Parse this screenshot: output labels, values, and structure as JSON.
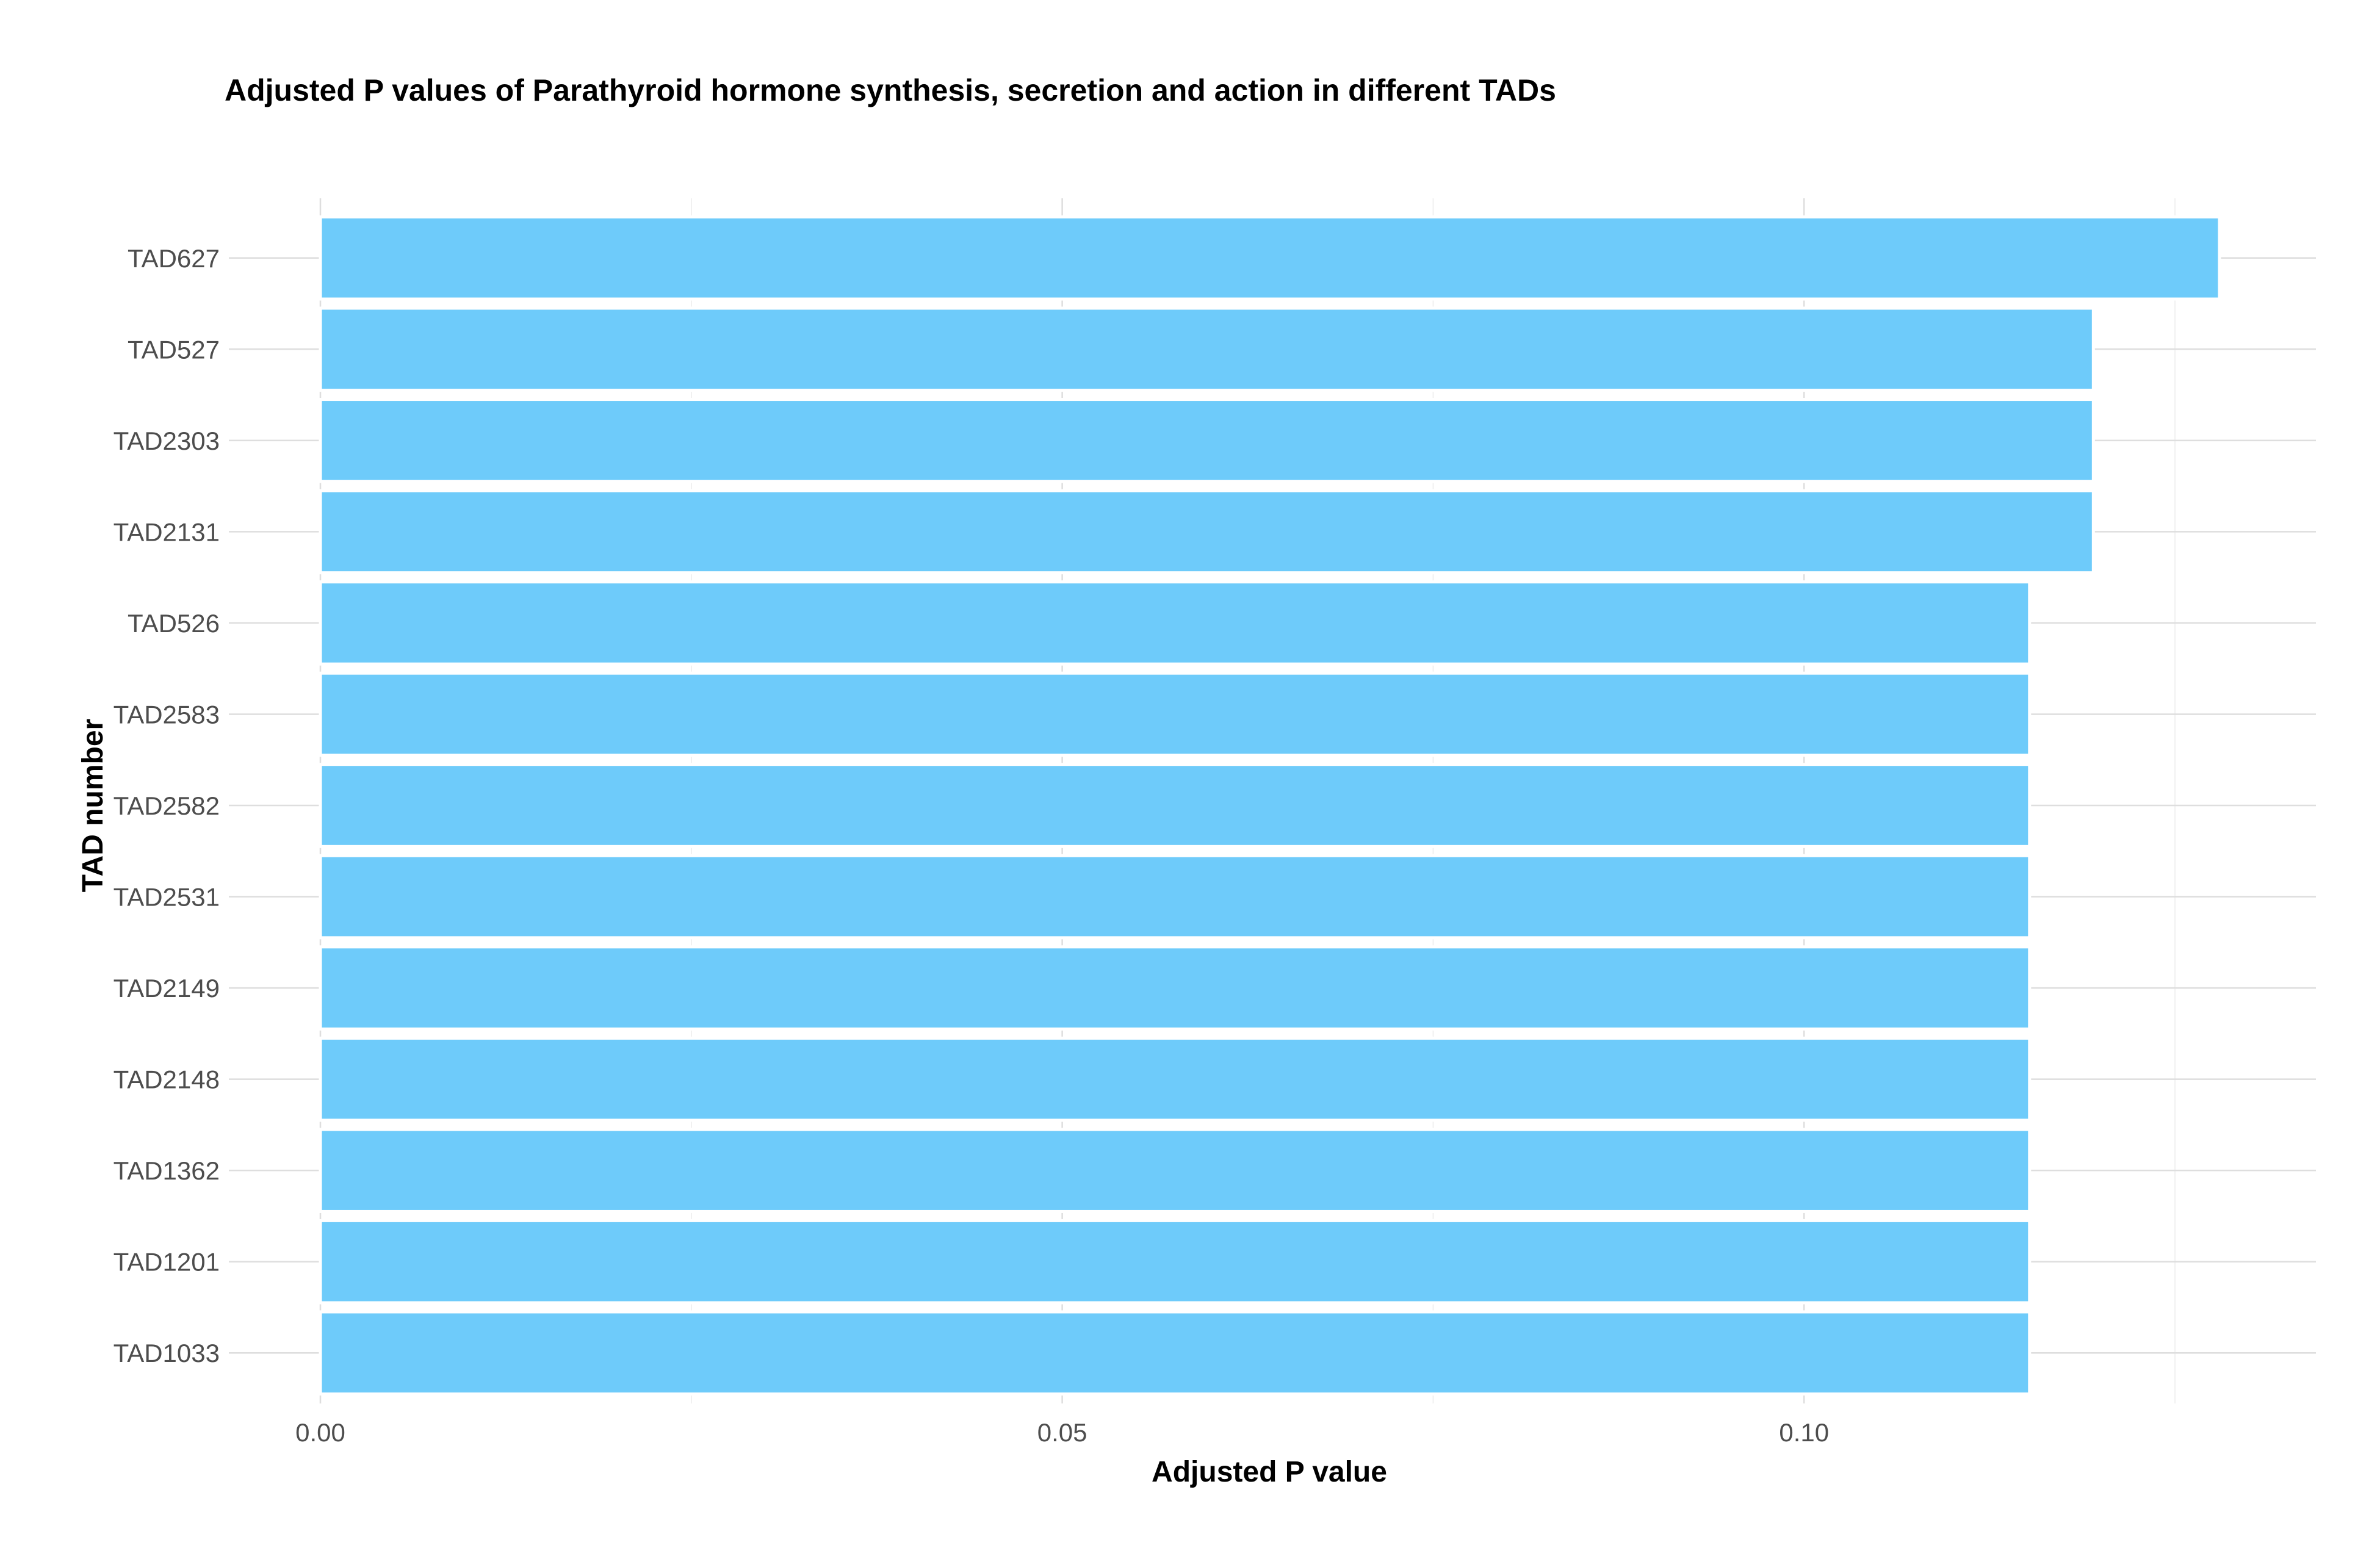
{
  "chart_data": {
    "type": "bar",
    "orientation": "horizontal",
    "title": "Adjusted P values of Parathyroid hormone synthesis, secretion and action in different TADs",
    "xlabel": "Adjusted P value",
    "ylabel": "TAD number",
    "categories": [
      "TAD627",
      "TAD527",
      "TAD2303",
      "TAD2131",
      "TAD526",
      "TAD2583",
      "TAD2582",
      "TAD2531",
      "TAD2149",
      "TAD2148",
      "TAD1362",
      "TAD1201",
      "TAD1033"
    ],
    "values": [
      0.128,
      0.1195,
      0.1195,
      0.1195,
      0.1152,
      0.1152,
      0.1152,
      0.1152,
      0.1152,
      0.1152,
      0.1152,
      0.1152,
      0.1152
    ],
    "xlim": [
      0,
      0.1345
    ],
    "x_ticks": [
      0,
      0.05,
      0.1
    ],
    "x_tick_labels": [
      "0.00",
      "0.05",
      "0.10"
    ],
    "grid": true,
    "legend": "none",
    "colors": {
      "bar_fill": "#6ecbfa",
      "bar_outline": "#ffffff",
      "background": "#ffffff",
      "grid": "#dedede"
    }
  }
}
